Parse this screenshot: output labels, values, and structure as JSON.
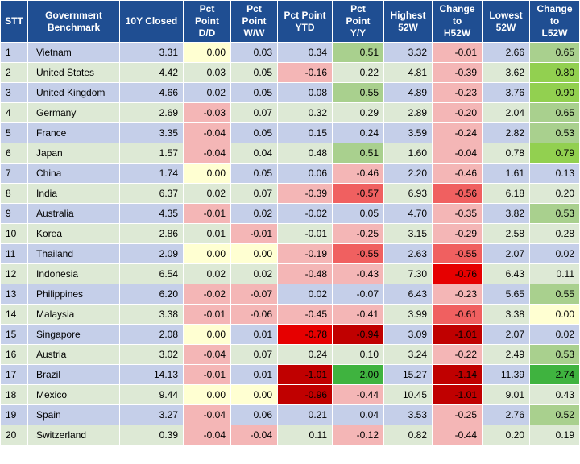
{
  "headers": [
    [
      "STT"
    ],
    [
      "Government",
      "Benchmark"
    ],
    [
      "10Y Closed"
    ],
    [
      "Pct",
      "Point",
      "D/D"
    ],
    [
      "Pct",
      "Point",
      "W/W"
    ],
    [
      "Pct Point",
      "YTD"
    ],
    [
      "Pct",
      "Point",
      "Y/Y"
    ],
    [
      "Highest",
      "52W"
    ],
    [
      "Change",
      "to",
      "H52W"
    ],
    [
      "Lowest",
      "52W"
    ],
    [
      "Change",
      "to",
      "L52W"
    ]
  ],
  "rows": [
    {
      "stt": "1",
      "name": "Vietnam",
      "closed": "3.31",
      "dd": "0.00",
      "ww": "0.03",
      "ytd": "0.34",
      "yy": "0.51",
      "high": "3.32",
      "chigh": "-0.01",
      "low": "2.66",
      "clow": "0.65"
    },
    {
      "stt": "2",
      "name": "United States",
      "closed": "4.42",
      "dd": "0.03",
      "ww": "0.05",
      "ytd": "-0.16",
      "yy": "0.22",
      "high": "4.81",
      "chigh": "-0.39",
      "low": "3.62",
      "clow": "0.80"
    },
    {
      "stt": "3",
      "name": "United Kingdom",
      "closed": "4.66",
      "dd": "0.02",
      "ww": "0.05",
      "ytd": "0.08",
      "yy": "0.55",
      "high": "4.89",
      "chigh": "-0.23",
      "low": "3.76",
      "clow": "0.90"
    },
    {
      "stt": "4",
      "name": "Germany",
      "closed": "2.69",
      "dd": "-0.03",
      "ww": "0.07",
      "ytd": "0.32",
      "yy": "0.29",
      "high": "2.89",
      "chigh": "-0.20",
      "low": "2.04",
      "clow": "0.65"
    },
    {
      "stt": "5",
      "name": "France",
      "closed": "3.35",
      "dd": "-0.04",
      "ww": "0.05",
      "ytd": "0.15",
      "yy": "0.24",
      "high": "3.59",
      "chigh": "-0.24",
      "low": "2.82",
      "clow": "0.53"
    },
    {
      "stt": "6",
      "name": "Japan",
      "closed": "1.57",
      "dd": "-0.04",
      "ww": "0.04",
      "ytd": "0.48",
      "yy": "0.51",
      "high": "1.60",
      "chigh": "-0.04",
      "low": "0.78",
      "clow": "0.79"
    },
    {
      "stt": "7",
      "name": "China",
      "closed": "1.74",
      "dd": "0.00",
      "ww": "0.05",
      "ytd": "0.06",
      "yy": "-0.46",
      "high": "2.20",
      "chigh": "-0.46",
      "low": "1.61",
      "clow": "0.13"
    },
    {
      "stt": "8",
      "name": "India",
      "closed": "6.37",
      "dd": "0.02",
      "ww": "0.07",
      "ytd": "-0.39",
      "yy": "-0.57",
      "high": "6.93",
      "chigh": "-0.56",
      "low": "6.18",
      "clow": "0.20"
    },
    {
      "stt": "9",
      "name": "Australia",
      "closed": "4.35",
      "dd": "-0.01",
      "ww": "0.02",
      "ytd": "-0.02",
      "yy": "0.05",
      "high": "4.70",
      "chigh": "-0.35",
      "low": "3.82",
      "clow": "0.53"
    },
    {
      "stt": "10",
      "name": "Korea",
      "closed": "2.86",
      "dd": "0.01",
      "ww": "-0.01",
      "ytd": "-0.01",
      "yy": "-0.25",
      "high": "3.15",
      "chigh": "-0.29",
      "low": "2.58",
      "clow": "0.28"
    },
    {
      "stt": "11",
      "name": "Thailand",
      "closed": "2.09",
      "dd": "0.00",
      "ww": "0.00",
      "ytd": "-0.19",
      "yy": "-0.55",
      "high": "2.63",
      "chigh": "-0.55",
      "low": "2.07",
      "clow": "0.02"
    },
    {
      "stt": "12",
      "name": "Indonesia",
      "closed": "6.54",
      "dd": "0.02",
      "ww": "0.02",
      "ytd": "-0.48",
      "yy": "-0.43",
      "high": "7.30",
      "chigh": "-0.76",
      "low": "6.43",
      "clow": "0.11"
    },
    {
      "stt": "13",
      "name": "Philippines",
      "closed": "6.20",
      "dd": "-0.02",
      "ww": "-0.07",
      "ytd": "0.02",
      "yy": "-0.07",
      "high": "6.43",
      "chigh": "-0.23",
      "low": "5.65",
      "clow": "0.55"
    },
    {
      "stt": "14",
      "name": "Malaysia",
      "closed": "3.38",
      "dd": "-0.01",
      "ww": "-0.06",
      "ytd": "-0.45",
      "yy": "-0.41",
      "high": "3.99",
      "chigh": "-0.61",
      "low": "3.38",
      "clow": "0.00"
    },
    {
      "stt": "15",
      "name": "Singapore",
      "closed": "2.08",
      "dd": "0.00",
      "ww": "0.01",
      "ytd": "-0.78",
      "yy": "-0.94",
      "high": "3.09",
      "chigh": "-1.01",
      "low": "2.07",
      "clow": "0.02"
    },
    {
      "stt": "16",
      "name": "Austria",
      "closed": "3.02",
      "dd": "-0.04",
      "ww": "0.07",
      "ytd": "0.24",
      "yy": "0.10",
      "high": "3.24",
      "chigh": "-0.22",
      "low": "2.49",
      "clow": "0.53"
    },
    {
      "stt": "17",
      "name": "Brazil",
      "closed": "14.13",
      "dd": "-0.01",
      "ww": "0.01",
      "ytd": "-1.01",
      "yy": "2.00",
      "high": "15.27",
      "chigh": "-1.14",
      "low": "11.39",
      "clow": "2.74"
    },
    {
      "stt": "18",
      "name": "Mexico",
      "closed": "9.44",
      "dd": "0.00",
      "ww": "0.00",
      "ytd": "-0.96",
      "yy": "-0.44",
      "high": "10.45",
      "chigh": "-1.01",
      "low": "9.01",
      "clow": "0.43"
    },
    {
      "stt": "19",
      "name": "Spain",
      "closed": "3.27",
      "dd": "-0.04",
      "ww": "0.06",
      "ytd": "0.21",
      "yy": "0.04",
      "high": "3.53",
      "chigh": "-0.25",
      "low": "2.76",
      "clow": "0.52"
    },
    {
      "stt": "20",
      "name": "Switzerland",
      "closed": "0.39",
      "dd": "-0.04",
      "ww": "-0.04",
      "ytd": "0.11",
      "yy": "-0.12",
      "high": "0.82",
      "chigh": "-0.44",
      "low": "0.20",
      "clow": "0.19"
    }
  ],
  "colors": {
    "header_bg": "#1f4e92",
    "header_text": "#ffffff",
    "blue_band": "#c5cfe9",
    "green_band": "#dde9d5",
    "light_red": "#f4b6b6",
    "medium_red": "#f06060",
    "strong_red": "#e60000",
    "dark_red": "#c00000",
    "light_green": "#a9d08e",
    "medium_green": "#92d050",
    "strong_green": "#3fb33f",
    "light_yellow": "#ffffd2"
  }
}
